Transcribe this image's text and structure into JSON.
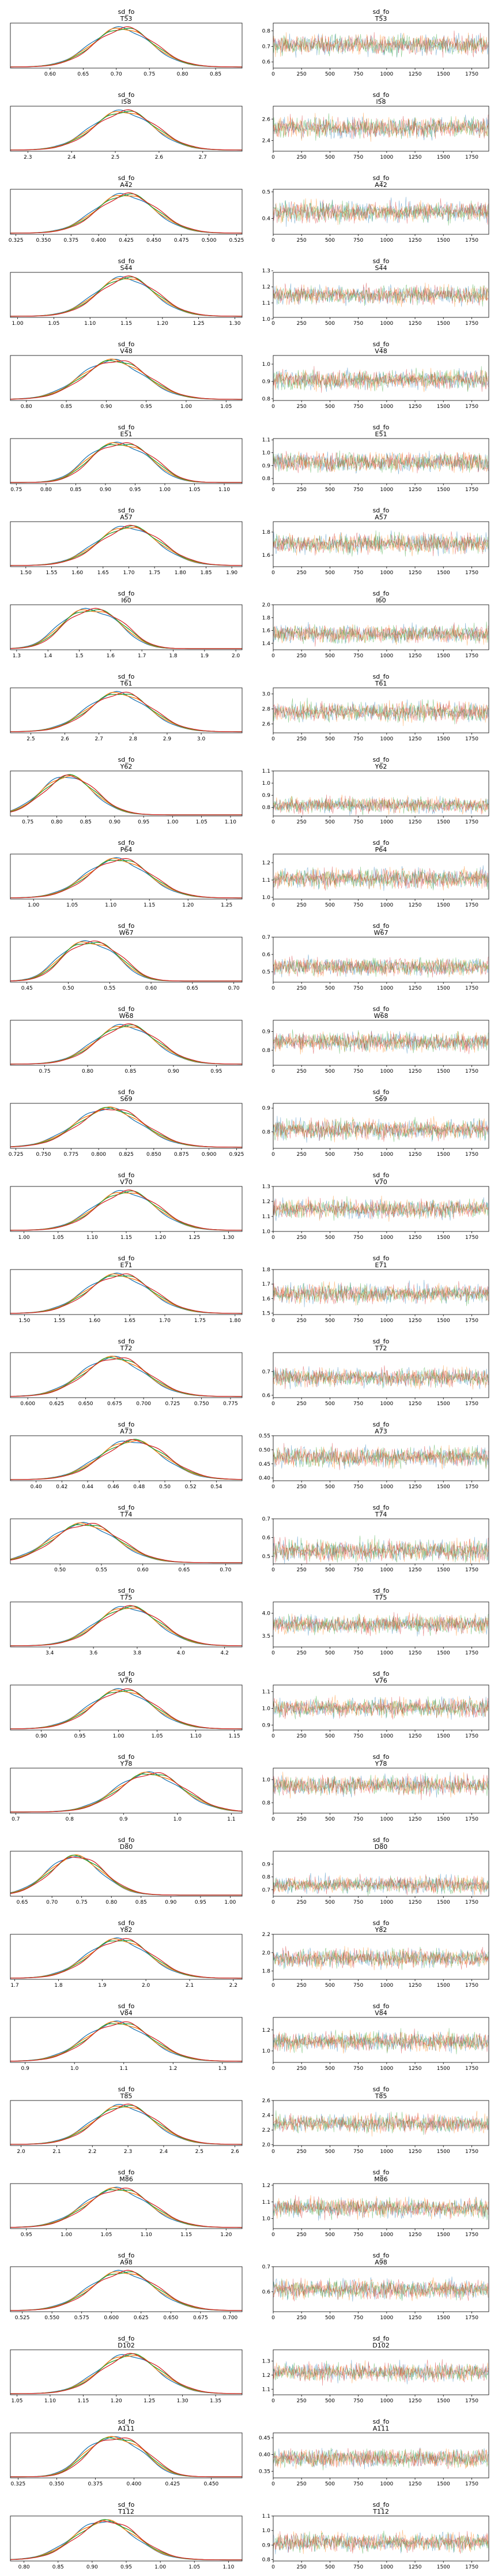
{
  "chart_data": {
    "type": "trace-plot",
    "variable": "sd_fo",
    "layout": "rows: [density, trace] per coordinate",
    "chain_colors": [
      "#1f77b4",
      "#ff7f0e",
      "#2ca02c",
      "#d62728"
    ],
    "trace_xlim": [
      0,
      1900
    ],
    "trace_xticks": [
      0,
      250,
      500,
      750,
      1000,
      1250,
      1500,
      1750
    ],
    "rows": [
      {
        "coord": "T53",
        "xlim": [
          0.54,
          0.89
        ],
        "xticks": [
          0.6,
          0.65,
          0.7,
          0.75,
          0.8,
          0.85
        ],
        "mu": 0.71,
        "sd": 0.045,
        "modes": 1,
        "yticks": [
          0.6,
          0.7,
          0.8
        ],
        "tlim": [
          0.56,
          0.85
        ]
      },
      {
        "coord": "l58",
        "xlim": [
          2.26,
          2.79
        ],
        "xticks": [
          2.3,
          2.4,
          2.5,
          2.6,
          2.7
        ],
        "mu": 2.52,
        "sd": 0.07,
        "modes": 1,
        "yticks": [
          2.4,
          2.6
        ],
        "tlim": [
          2.3,
          2.72
        ]
      },
      {
        "coord": "A42",
        "xlim": [
          0.32,
          0.53
        ],
        "xticks": [
          0.325,
          0.35,
          0.375,
          0.4,
          0.425,
          0.45,
          0.475,
          0.5,
          0.525
        ],
        "mu": 0.425,
        "sd": 0.027,
        "modes": 1,
        "yticks": [
          0.4,
          0.5
        ],
        "tlim": [
          0.34,
          0.51
        ]
      },
      {
        "coord": "S44",
        "xlim": [
          0.99,
          1.31
        ],
        "xticks": [
          1.0,
          1.05,
          1.1,
          1.15,
          1.2,
          1.25,
          1.3
        ],
        "mu": 1.15,
        "sd": 0.04,
        "modes": 1,
        "yticks": [
          1.0,
          1.1,
          1.2,
          1.3
        ],
        "tlim": [
          1.01,
          1.29
        ]
      },
      {
        "coord": "V48",
        "xlim": [
          0.78,
          1.07
        ],
        "xticks": [
          0.8,
          0.85,
          0.9,
          0.95,
          1.0,
          1.05
        ],
        "mu": 0.91,
        "sd": 0.04,
        "modes": 1,
        "yticks": [
          0.8,
          0.9,
          1.0
        ],
        "tlim": [
          0.79,
          1.05
        ]
      },
      {
        "coord": "E51",
        "xlim": [
          0.74,
          1.13
        ],
        "xticks": [
          0.75,
          0.8,
          0.85,
          0.9,
          0.95,
          1.0,
          1.05,
          1.1
        ],
        "mu": 0.93,
        "sd": 0.06,
        "modes": 2,
        "yticks": [
          0.8,
          0.9,
          1.0,
          1.1
        ],
        "tlim": [
          0.76,
          1.11
        ]
      },
      {
        "coord": "A57",
        "xlim": [
          1.47,
          1.92
        ],
        "xticks": [
          1.5,
          1.55,
          1.6,
          1.65,
          1.7,
          1.75,
          1.8,
          1.85,
          1.9
        ],
        "mu": 1.7,
        "sd": 0.06,
        "modes": 1,
        "yticks": [
          1.6,
          1.8
        ],
        "tlim": [
          1.5,
          1.89
        ]
      },
      {
        "coord": "I60",
        "xlim": [
          1.28,
          2.02
        ],
        "xticks": [
          1.3,
          1.4,
          1.5,
          1.6,
          1.7,
          1.8,
          1.9,
          2.0
        ],
        "mu": 1.55,
        "sd": 0.11,
        "modes": 2,
        "yticks": [
          1.4,
          1.6,
          1.8,
          2.0
        ],
        "tlim": [
          1.3,
          2.0
        ]
      },
      {
        "coord": "T61",
        "xlim": [
          2.44,
          3.12
        ],
        "xticks": [
          2.5,
          2.6,
          2.7,
          2.8,
          2.9,
          3.0
        ],
        "mu": 2.76,
        "sd": 0.09,
        "modes": 1,
        "yticks": [
          2.6,
          2.8,
          3.0
        ],
        "tlim": [
          2.48,
          3.08
        ]
      },
      {
        "coord": "Y62",
        "xlim": [
          0.72,
          1.12
        ],
        "xticks": [
          0.75,
          0.8,
          0.85,
          0.9,
          0.95,
          1.0,
          1.05,
          1.1
        ],
        "mu": 0.82,
        "sd": 0.045,
        "modes": 1,
        "yticks": [
          0.8,
          0.9,
          1.0,
          1.1
        ],
        "tlim": [
          0.73,
          1.1
        ]
      },
      {
        "coord": "P64",
        "xlim": [
          0.97,
          1.27
        ],
        "xticks": [
          1.0,
          1.05,
          1.1,
          1.15,
          1.2,
          1.25
        ],
        "mu": 1.11,
        "sd": 0.04,
        "modes": 1,
        "yticks": [
          1.0,
          1.1,
          1.2
        ],
        "tlim": [
          0.99,
          1.25
        ]
      },
      {
        "coord": "W67",
        "xlim": [
          0.43,
          0.71
        ],
        "xticks": [
          0.45,
          0.5,
          0.55,
          0.6,
          0.65,
          0.7
        ],
        "mu": 0.53,
        "sd": 0.04,
        "modes": 2,
        "yticks": [
          0.5,
          0.6,
          0.7
        ],
        "tlim": [
          0.44,
          0.7
        ]
      },
      {
        "coord": "W68",
        "xlim": [
          0.71,
          0.98
        ],
        "xticks": [
          0.75,
          0.8,
          0.85,
          0.9,
          0.95
        ],
        "mu": 0.845,
        "sd": 0.035,
        "modes": 1,
        "yticks": [
          0.8,
          0.9
        ],
        "tlim": [
          0.72,
          0.96
        ]
      },
      {
        "coord": "S69",
        "xlim": [
          0.72,
          0.93
        ],
        "xticks": [
          0.725,
          0.75,
          0.775,
          0.8,
          0.825,
          0.85,
          0.875,
          0.9,
          0.925
        ],
        "mu": 0.81,
        "sd": 0.03,
        "modes": 1,
        "yticks": [
          0.8,
          0.9
        ],
        "tlim": [
          0.73,
          0.92
        ]
      },
      {
        "coord": "V70",
        "xlim": [
          0.98,
          1.32
        ],
        "xticks": [
          1.0,
          1.05,
          1.1,
          1.15,
          1.2,
          1.25,
          1.3
        ],
        "mu": 1.15,
        "sd": 0.045,
        "modes": 1,
        "yticks": [
          1.0,
          1.1,
          1.2,
          1.3
        ],
        "tlim": [
          1.0,
          1.3
        ]
      },
      {
        "coord": "E71",
        "xlim": [
          1.48,
          1.81
        ],
        "xticks": [
          1.5,
          1.55,
          1.6,
          1.65,
          1.7,
          1.75,
          1.8
        ],
        "mu": 1.635,
        "sd": 0.045,
        "modes": 1,
        "yticks": [
          1.5,
          1.6,
          1.7,
          1.8
        ],
        "tlim": [
          1.49,
          1.8
        ]
      },
      {
        "coord": "T72",
        "xlim": [
          0.585,
          0.785
        ],
        "xticks": [
          0.6,
          0.625,
          0.65,
          0.675,
          0.7,
          0.725,
          0.75,
          0.775
        ],
        "mu": 0.675,
        "sd": 0.027,
        "modes": 1,
        "yticks": [
          0.6,
          0.7
        ],
        "tlim": [
          0.59,
          0.78
        ]
      },
      {
        "coord": "A73",
        "xlim": [
          0.38,
          0.56
        ],
        "xticks": [
          0.4,
          0.42,
          0.44,
          0.46,
          0.48,
          0.5,
          0.52,
          0.54
        ],
        "mu": 0.475,
        "sd": 0.025,
        "modes": 1,
        "yticks": [
          0.4,
          0.45,
          0.5,
          0.55
        ],
        "tlim": [
          0.39,
          0.55
        ]
      },
      {
        "coord": "T74",
        "xlim": [
          0.44,
          0.72
        ],
        "xticks": [
          0.5,
          0.55,
          0.6,
          0.65,
          0.7
        ],
        "mu": 0.53,
        "sd": 0.04,
        "modes": 1,
        "yticks": [
          0.5,
          0.6,
          0.7
        ],
        "tlim": [
          0.46,
          0.7
        ]
      },
      {
        "coord": "T75",
        "xlim": [
          3.22,
          4.28
        ],
        "xticks": [
          3.4,
          3.6,
          3.8,
          4.0,
          4.2
        ],
        "mu": 3.76,
        "sd": 0.14,
        "modes": 1,
        "yticks": [
          3.5,
          4.0
        ],
        "tlim": [
          3.26,
          4.25
        ]
      },
      {
        "coord": "V76",
        "xlim": [
          0.86,
          1.16
        ],
        "xticks": [
          0.9,
          0.95,
          1.0,
          1.05,
          1.1,
          1.15
        ],
        "mu": 1.005,
        "sd": 0.04,
        "modes": 1,
        "yticks": [
          0.9,
          1.0,
          1.1
        ],
        "tlim": [
          0.87,
          1.14
        ]
      },
      {
        "coord": "Y78",
        "xlim": [
          0.69,
          1.12
        ],
        "xticks": [
          0.7,
          0.8,
          0.9,
          1.0,
          1.1
        ],
        "mu": 0.95,
        "sd": 0.06,
        "modes": 1,
        "yticks": [
          0.8,
          1.0
        ],
        "tlim": [
          0.71,
          1.1
        ]
      },
      {
        "coord": "D80",
        "xlim": [
          0.63,
          1.02
        ],
        "xticks": [
          0.65,
          0.7,
          0.75,
          0.8,
          0.85,
          0.9,
          0.95,
          1.0
        ],
        "mu": 0.74,
        "sd": 0.045,
        "modes": 1,
        "yticks": [
          0.7,
          0.8,
          0.9
        ],
        "tlim": [
          0.65,
          1.0
        ]
      },
      {
        "coord": "Y82",
        "xlim": [
          1.69,
          2.22
        ],
        "xticks": [
          1.7,
          1.8,
          1.9,
          2.0,
          2.1,
          2.2
        ],
        "mu": 1.94,
        "sd": 0.07,
        "modes": 1,
        "yticks": [
          1.8,
          2.0,
          2.2
        ],
        "tlim": [
          1.71,
          2.2
        ]
      },
      {
        "coord": "V84",
        "xlim": [
          0.87,
          1.34
        ],
        "xticks": [
          0.9,
          1.0,
          1.1,
          1.2,
          1.3
        ],
        "mu": 1.09,
        "sd": 0.065,
        "modes": 1,
        "yticks": [
          1.0,
          1.2
        ],
        "tlim": [
          0.89,
          1.32
        ]
      },
      {
        "coord": "T85",
        "xlim": [
          1.97,
          2.62
        ],
        "xticks": [
          2.0,
          2.1,
          2.2,
          2.3,
          2.4,
          2.5,
          2.6
        ],
        "mu": 2.29,
        "sd": 0.085,
        "modes": 1,
        "yticks": [
          2.0,
          2.2,
          2.4,
          2.6
        ],
        "tlim": [
          1.99,
          2.6
        ]
      },
      {
        "coord": "M86",
        "xlim": [
          0.93,
          1.22
        ],
        "xticks": [
          0.95,
          1.0,
          1.05,
          1.1,
          1.15,
          1.2
        ],
        "mu": 1.065,
        "sd": 0.04,
        "modes": 1,
        "yticks": [
          1.0,
          1.1,
          1.2
        ],
        "tlim": [
          0.94,
          1.21
        ]
      },
      {
        "coord": "A98",
        "xlim": [
          0.515,
          0.71
        ],
        "xticks": [
          0.525,
          0.55,
          0.575,
          0.6,
          0.625,
          0.65,
          0.675,
          0.7
        ],
        "mu": 0.61,
        "sd": 0.027,
        "modes": 1,
        "yticks": [
          0.6,
          0.7
        ],
        "tlim": [
          0.52,
          0.7
        ]
      },
      {
        "coord": "D102",
        "xlim": [
          1.04,
          1.39
        ],
        "xticks": [
          1.05,
          1.1,
          1.15,
          1.2,
          1.25,
          1.3,
          1.35
        ],
        "mu": 1.22,
        "sd": 0.045,
        "modes": 1,
        "yticks": [
          1.1,
          1.2,
          1.3
        ],
        "tlim": [
          1.06,
          1.38
        ]
      },
      {
        "coord": "A111",
        "xlim": [
          0.32,
          0.47
        ],
        "xticks": [
          0.325,
          0.35,
          0.375,
          0.4,
          0.425,
          0.45
        ],
        "mu": 0.39,
        "sd": 0.022,
        "modes": 2,
        "yticks": [
          0.35,
          0.4,
          0.45
        ],
        "tlim": [
          0.33,
          0.465
        ]
      },
      {
        "coord": "T112",
        "xlim": [
          0.78,
          1.12
        ],
        "xticks": [
          0.8,
          0.85,
          0.9,
          0.95,
          1.0,
          1.05,
          1.1
        ],
        "mu": 0.92,
        "sd": 0.045,
        "modes": 1,
        "yticks": [
          0.8,
          0.9,
          1.0,
          1.1
        ],
        "tlim": [
          0.79,
          1.1
        ]
      }
    ]
  }
}
